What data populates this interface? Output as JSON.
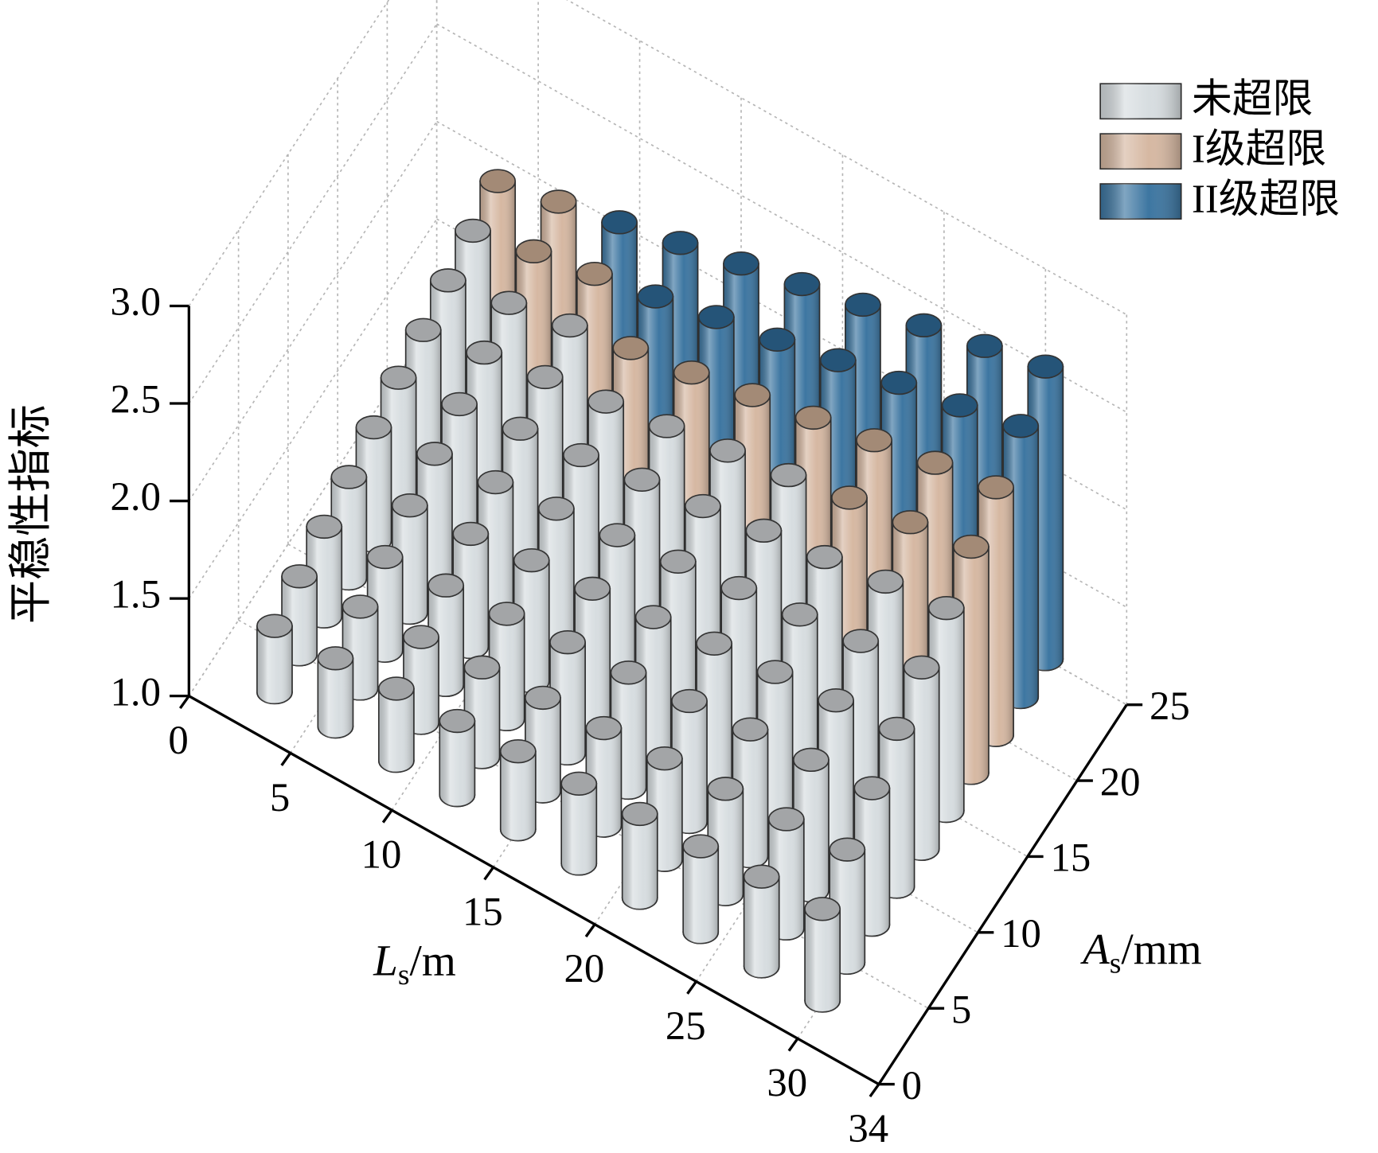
{
  "chart_data": {
    "type": "bar3d",
    "xlabel": [
      "L",
      "s",
      "/m"
    ],
    "ylabel": [
      "A",
      "s",
      "/mm"
    ],
    "zlabel": "平稳性指标",
    "xlim": [
      0,
      34
    ],
    "xticks": [
      0,
      5,
      10,
      15,
      20,
      25,
      30,
      34
    ],
    "ylim": [
      0,
      25
    ],
    "yticks": [
      0,
      5,
      10,
      15,
      20,
      25
    ],
    "zlim": [
      1,
      3
    ],
    "zticks": [
      {
        "value": 1,
        "label": "1.0"
      },
      1.5,
      {
        "value": 2,
        "label": "2.0"
      },
      2.5,
      {
        "value": 3,
        "label": "3.0"
      }
    ],
    "grid": true,
    "legend": "upper right",
    "series": [
      {
        "name": "未超限",
        "color": "#d7dde0",
        "cap_color": "#a3a5a7",
        "x": [
          3,
          3,
          3,
          3,
          3,
          3,
          3,
          3,
          3,
          6,
          6,
          6,
          6,
          6,
          6,
          6,
          6,
          9,
          9,
          9,
          9,
          9,
          9,
          9,
          9,
          12,
          12,
          12,
          12,
          12,
          12,
          12,
          15,
          15,
          15,
          15,
          15,
          15,
          15,
          18,
          18,
          18,
          18,
          18,
          18,
          18,
          21,
          21,
          21,
          21,
          21,
          21,
          21,
          24,
          24,
          24,
          24,
          24,
          24,
          27,
          27,
          27,
          27,
          27,
          27,
          30,
          30,
          30,
          30,
          30,
          30
        ],
        "y": [
          2.5,
          5,
          7.5,
          10,
          12.5,
          15,
          17.5,
          20,
          22.5,
          2.5,
          5,
          7.5,
          10,
          12.5,
          15,
          17.5,
          20,
          2.5,
          5,
          7.5,
          10,
          12.5,
          15,
          17.5,
          20,
          2.5,
          5,
          7.5,
          10,
          12.5,
          15,
          17.5,
          2.5,
          5,
          7.5,
          10,
          12.5,
          15,
          17.5,
          2.5,
          5,
          7.5,
          10,
          12.5,
          15,
          17.5,
          2.5,
          5,
          7.5,
          10,
          12.5,
          15,
          17.5,
          2.5,
          5,
          7.5,
          10,
          12.5,
          15,
          2.5,
          5,
          7.5,
          10,
          12.5,
          15,
          2.5,
          5,
          7.5,
          10,
          12.5,
          15
        ],
        "z": [
          1.34,
          1.4,
          1.46,
          1.52,
          1.58,
          1.64,
          1.69,
          1.75,
          1.81,
          1.35,
          1.42,
          1.48,
          1.55,
          1.62,
          1.68,
          1.75,
          1.81,
          1.37,
          1.44,
          1.51,
          1.58,
          1.65,
          1.73,
          1.8,
          1.87,
          1.38,
          1.46,
          1.54,
          1.62,
          1.69,
          1.77,
          1.85,
          1.4,
          1.48,
          1.57,
          1.65,
          1.73,
          1.82,
          1.9,
          1.41,
          1.5,
          1.59,
          1.68,
          1.77,
          1.86,
          1.95,
          1.43,
          1.52,
          1.62,
          1.72,
          1.81,
          1.91,
          2.0,
          1.44,
          1.54,
          1.65,
          1.75,
          1.85,
          1.95,
          1.46,
          1.56,
          1.67,
          1.78,
          1.89,
          2.0,
          1.47,
          1.58,
          1.7,
          1.81,
          1.93,
          2.04
        ]
      },
      {
        "name": "I级超限",
        "color": "#d6b8a2",
        "cap_color": "#a38a76",
        "x": [
          3,
          6,
          6,
          9,
          12,
          15,
          18,
          21,
          24,
          24,
          27,
          27,
          30,
          30
        ],
        "y": [
          25,
          22.5,
          25,
          22.5,
          20,
          20,
          20,
          20,
          17.5,
          20,
          17.5,
          20,
          17.5,
          20
        ],
        "z": [
          1.87,
          1.88,
          1.94,
          1.94,
          1.93,
          1.98,
          2.04,
          2.1,
          2.06,
          2.16,
          2.11,
          2.22,
          2.16,
          2.27
        ]
      },
      {
        "name": "II级超限",
        "color": "#3d76a1",
        "cap_color": "#255478",
        "x": [
          9,
          12,
          12,
          15,
          15,
          18,
          18,
          21,
          21,
          24,
          24,
          27,
          27,
          30,
          30
        ],
        "y": [
          25,
          22.5,
          25,
          22.5,
          25,
          22.5,
          25,
          22.5,
          25,
          22.5,
          25,
          22.5,
          25,
          22.5,
          25
        ],
        "z": [
          2.01,
          2.0,
          2.08,
          2.07,
          2.15,
          2.13,
          2.22,
          2.2,
          2.29,
          2.26,
          2.36,
          2.32,
          2.43,
          2.39,
          2.5
        ]
      }
    ]
  }
}
